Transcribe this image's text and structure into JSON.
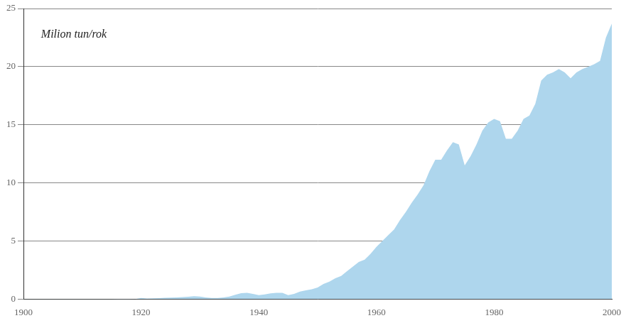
{
  "chart_data": {
    "type": "area",
    "annotation": "Milion tun/rok",
    "color": "#aed6ed",
    "grid": "y",
    "xlim": [
      1900,
      2000
    ],
    "ylim": [
      0,
      25
    ],
    "xticks": [
      1900,
      1920,
      1940,
      1960,
      1980,
      2000
    ],
    "yticks": [
      0,
      5,
      10,
      15,
      20,
      25
    ],
    "x": [
      1900,
      1901,
      1902,
      1903,
      1904,
      1905,
      1906,
      1907,
      1908,
      1909,
      1910,
      1911,
      1912,
      1913,
      1914,
      1915,
      1916,
      1917,
      1918,
      1919,
      1920,
      1921,
      1922,
      1923,
      1924,
      1925,
      1926,
      1927,
      1928,
      1929,
      1930,
      1931,
      1932,
      1933,
      1934,
      1935,
      1936,
      1937,
      1938,
      1939,
      1940,
      1941,
      1942,
      1943,
      1944,
      1945,
      1946,
      1947,
      1948,
      1949,
      1950,
      1951,
      1952,
      1953,
      1954,
      1955,
      1956,
      1957,
      1958,
      1959,
      1960,
      1961,
      1962,
      1963,
      1964,
      1965,
      1966,
      1967,
      1968,
      1969,
      1970,
      1971,
      1972,
      1973,
      1974,
      1975,
      1976,
      1977,
      1978,
      1979,
      1980,
      1981,
      1982,
      1983,
      1984,
      1985,
      1986,
      1987,
      1988,
      1989,
      1990,
      1991,
      1992,
      1993,
      1994,
      1995,
      1996,
      1997,
      1998,
      1999,
      2000
    ],
    "values": [
      0.005,
      0.005,
      0.005,
      0.005,
      0.005,
      0.006,
      0.007,
      0.008,
      0.009,
      0.01,
      0.011,
      0.012,
      0.013,
      0.014,
      0.013,
      0.014,
      0.018,
      0.02,
      0.019,
      0.015,
      0.1,
      0.06,
      0.07,
      0.09,
      0.11,
      0.13,
      0.14,
      0.17,
      0.21,
      0.25,
      0.22,
      0.15,
      0.1,
      0.1,
      0.14,
      0.22,
      0.38,
      0.52,
      0.55,
      0.45,
      0.35,
      0.4,
      0.5,
      0.55,
      0.55,
      0.35,
      0.45,
      0.65,
      0.75,
      0.85,
      1.0,
      1.3,
      1.5,
      1.8,
      2.0,
      2.4,
      2.8,
      3.2,
      3.4,
      3.9,
      4.5,
      5.0,
      5.5,
      6.0,
      6.8,
      7.5,
      8.3,
      9.0,
      9.8,
      11.0,
      12.0,
      12.0,
      12.8,
      13.5,
      13.3,
      11.5,
      12.3,
      13.3,
      14.5,
      15.2,
      15.5,
      15.3,
      13.8,
      13.8,
      14.5,
      15.5,
      15.8,
      16.8,
      18.8,
      19.3,
      19.5,
      19.8,
      19.5,
      19.0,
      19.5,
      19.8,
      20.0,
      20.2,
      20.5,
      22.5,
      23.7
    ]
  }
}
